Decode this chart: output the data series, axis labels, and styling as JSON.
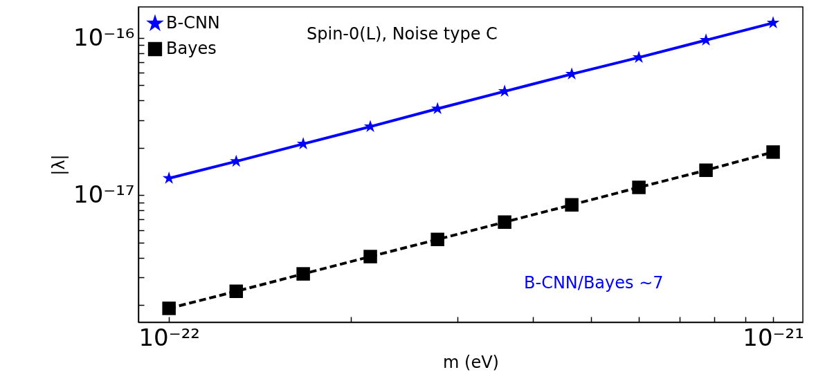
{
  "chart_data": {
    "type": "line",
    "xlabel": "m (eV)",
    "ylabel": "|λ|",
    "x": [
      1e-22,
      1.292e-22,
      1.668e-22,
      2.154e-22,
      2.783e-22,
      3.594e-22,
      4.642e-22,
      5.995e-22,
      7.743e-22,
      1e-21
    ],
    "series": [
      {
        "name": "B-CNN",
        "color": "#0000ff",
        "marker": "star",
        "line_style": "solid",
        "values": [
          1.28e-17,
          1.64e-17,
          2.12e-17,
          2.73e-17,
          3.55e-17,
          4.58e-17,
          5.9e-17,
          7.53e-17,
          9.7e-17,
          1.25e-16
        ]
      },
      {
        "name": "Bayes",
        "color": "#000000",
        "marker": "square",
        "line_style": "dashed",
        "values": [
          1.9e-18,
          2.44e-18,
          3.15e-18,
          4.06e-18,
          5.22e-18,
          6.73e-18,
          8.67e-18,
          1.12e-17,
          1.44e-17,
          1.88e-17
        ]
      }
    ],
    "log": "xy",
    "xlim": [
      8.9e-23,
      1.12e-21
    ],
    "ylim": [
      1.55e-18,
      1.58e-16
    ],
    "xticks": [
      {
        "value": 1e-22,
        "label": "10⁻²²"
      },
      {
        "value": 2e-22,
        "label": null
      },
      {
        "value": 3e-22,
        "label": null
      },
      {
        "value": 4e-22,
        "label": null
      },
      {
        "value": 5e-22,
        "label": null
      },
      {
        "value": 6e-22,
        "label": null
      },
      {
        "value": 7e-22,
        "label": null
      },
      {
        "value": 8e-22,
        "label": null
      },
      {
        "value": 9e-22,
        "label": null
      },
      {
        "value": 1e-21,
        "label": "10⁻²¹"
      }
    ],
    "yticks": [
      {
        "value": 2e-18,
        "label": null
      },
      {
        "value": 3e-18,
        "label": null
      },
      {
        "value": 4e-18,
        "label": null
      },
      {
        "value": 5e-18,
        "label": null
      },
      {
        "value": 6e-18,
        "label": null
      },
      {
        "value": 7e-18,
        "label": null
      },
      {
        "value": 8e-18,
        "label": null
      },
      {
        "value": 9e-18,
        "label": null
      },
      {
        "value": 1e-17,
        "label": "10⁻¹⁷"
      },
      {
        "value": 2e-17,
        "label": null
      },
      {
        "value": 3e-17,
        "label": null
      },
      {
        "value": 4e-17,
        "label": null
      },
      {
        "value": 5e-17,
        "label": null
      },
      {
        "value": 6e-17,
        "label": null
      },
      {
        "value": 7e-17,
        "label": null
      },
      {
        "value": 8e-17,
        "label": null
      },
      {
        "value": 9e-17,
        "label": null
      },
      {
        "value": 1e-16,
        "label": "10⁻¹⁶"
      }
    ],
    "grid": false,
    "legend": "top left",
    "annotations": [
      "Spin-0(L), Noise type C",
      "B-CNN/Bayes ∼7"
    ]
  }
}
